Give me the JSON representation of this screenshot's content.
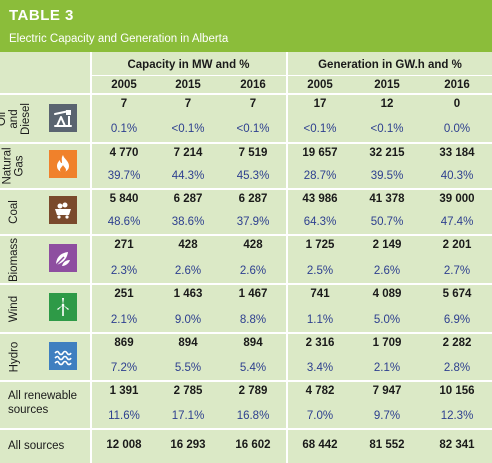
{
  "title": "TABLE 3",
  "subtitle": "Electric Capacity and Generation in Alberta",
  "groups": [
    {
      "label": "Capacity in MW and %"
    },
    {
      "label": "Generation in GW.h and %"
    }
  ],
  "years": [
    "2005",
    "2015",
    "2016",
    "2005",
    "2015",
    "2016"
  ],
  "rows": [
    {
      "label": "Oil and Diesel",
      "icon": "oil-pump-icon",
      "icon_color": "#5a6470",
      "values": [
        "7",
        "7",
        "7",
        "17",
        "12",
        "0"
      ],
      "percents": [
        "0.1%",
        "<0.1%",
        "<0.1%",
        "<0.1%",
        "<0.1%",
        "0.0%"
      ]
    },
    {
      "label": "Natural Gas",
      "icon": "flame-icon",
      "icon_color": "#f0812b",
      "values": [
        "4 770",
        "7 214",
        "7 519",
        "19 657",
        "32 215",
        "33 184"
      ],
      "percents": [
        "39.7%",
        "44.3%",
        "45.3%",
        "28.7%",
        "39.5%",
        "40.3%"
      ]
    },
    {
      "label": "Coal",
      "icon": "coal-cart-icon",
      "icon_color": "#7a4a2c",
      "values": [
        "5 840",
        "6 287",
        "6 287",
        "43 986",
        "41 378",
        "39 000"
      ],
      "percents": [
        "48.6%",
        "38.6%",
        "37.9%",
        "64.3%",
        "50.7%",
        "47.4%"
      ]
    },
    {
      "label": "Biomass",
      "icon": "leaves-icon",
      "icon_color": "#8e4ea0",
      "values": [
        "271",
        "428",
        "428",
        "1 725",
        "2 149",
        "2 201"
      ],
      "percents": [
        "2.3%",
        "2.6%",
        "2.6%",
        "2.5%",
        "2.6%",
        "2.7%"
      ]
    },
    {
      "label": "Wind",
      "icon": "wind-turbine-icon",
      "icon_color": "#2e9a47",
      "values": [
        "251",
        "1 463",
        "1 467",
        "741",
        "4 089",
        "5 674"
      ],
      "percents": [
        "2.1%",
        "9.0%",
        "8.8%",
        "1.1%",
        "5.0%",
        "6.9%"
      ]
    },
    {
      "label": "Hydro",
      "icon": "water-waves-icon",
      "icon_color": "#3f7fc0",
      "values": [
        "869",
        "894",
        "894",
        "2 316",
        "1 709",
        "2 282"
      ],
      "percents": [
        "7.2%",
        "5.5%",
        "5.4%",
        "3.4%",
        "2.1%",
        "2.8%"
      ]
    }
  ],
  "renewable": {
    "label_line1": "All renewable",
    "label_line2": "sources",
    "values": [
      "1 391",
      "2 785",
      "2 789",
      "4 782",
      "7 947",
      "10 156"
    ],
    "percents": [
      "11.6%",
      "17.1%",
      "16.8%",
      "7.0%",
      "9.7%",
      "12.3%"
    ]
  },
  "all": {
    "label": "All sources",
    "values": [
      "12 008",
      "16 293",
      "16 602",
      "68 442",
      "81 552",
      "82 341"
    ]
  },
  "colors": {
    "header_green": "#8bbd3a",
    "table_bg": "#dbe9c6",
    "percent_text": "#2d3f8f"
  }
}
